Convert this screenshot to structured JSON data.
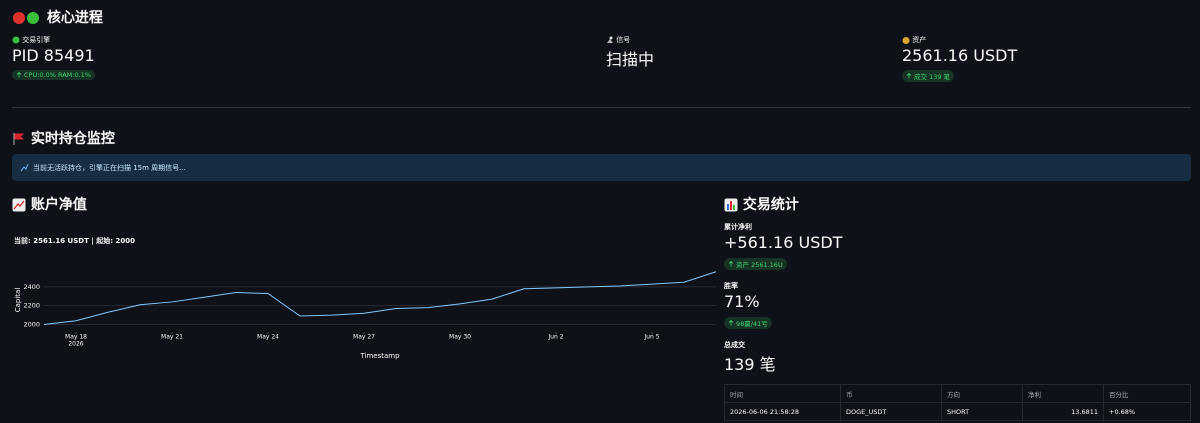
{
  "header": {
    "title": "核心进程"
  },
  "metrics": [
    {
      "label": "交易引擎",
      "value": "PID 85491",
      "delta": "CPU:0.0% RAM:0.1%"
    },
    {
      "label": "信号",
      "value": "扫描中"
    },
    {
      "label": "资产",
      "value": "2561.16 USDT",
      "delta": "成交 139 笔"
    }
  ],
  "positions": {
    "title": "实时持仓监控",
    "info": "当前无活跃持仓，引擎正在扫描 15m 周期信号..."
  },
  "equity": {
    "title": "账户净值"
  },
  "chart_data": {
    "type": "line",
    "title": "当前: 2561.16 USDT | 起始: 2000",
    "x_label": "Timestamp",
    "y_label": "Capital",
    "x": [
      "2026-05-17",
      "2026-05-18",
      "2026-05-19",
      "2026-05-20",
      "2026-05-21",
      "2026-05-22",
      "2026-05-23",
      "2026-05-24",
      "2026-05-25",
      "2026-05-26",
      "2026-05-27",
      "2026-05-28",
      "2026-05-29",
      "2026-05-30",
      "2026-05-31",
      "2026-06-01",
      "2026-06-02",
      "2026-06-03",
      "2026-06-04",
      "2026-06-05",
      "2026-06-06",
      "2026-06-07"
    ],
    "values": [
      2000,
      2040,
      2130,
      2210,
      2240,
      2290,
      2340,
      2330,
      2090,
      2100,
      2120,
      2170,
      2180,
      2220,
      2270,
      2380,
      2390,
      2400,
      2410,
      2430,
      2450,
      2561.16
    ],
    "color": "#83c9ff",
    "xlim": [
      "2026-05-17",
      "2026-06-07"
    ],
    "xticks": [
      {
        "value": "2026-05-18",
        "label": "May 18",
        "sublabel": "2026"
      },
      {
        "value": "2026-05-21",
        "label": "May 21"
      },
      {
        "value": "2026-05-24",
        "label": "May 24"
      },
      {
        "value": "2026-05-27",
        "label": "May 27"
      },
      {
        "value": "2026-05-30",
        "label": "May 30"
      },
      {
        "value": "2026-06-02",
        "label": "Jun 2"
      },
      {
        "value": "2026-06-05",
        "label": "Jun 5"
      }
    ],
    "ylim": [
      1920,
      2580
    ],
    "yticks": [
      2000,
      2200,
      2400
    ],
    "grid": true
  },
  "stats": {
    "title": "交易统计",
    "metrics": [
      {
        "label": "累计净利",
        "value": "+561.16 USDT",
        "delta": "资产 2561.16U"
      },
      {
        "label": "胜率",
        "value": "71%",
        "delta": "98赢/41亏"
      },
      {
        "label": "总成交",
        "value": "139 笔"
      }
    ]
  },
  "table": {
    "columns": [
      "时间",
      "币",
      "方向",
      "净利",
      "百分比"
    ],
    "rows": [
      [
        "2026-06-06 21:58:28",
        "DOGE_USDT",
        "SHORT",
        "13.6811",
        "+0.68%"
      ]
    ]
  }
}
